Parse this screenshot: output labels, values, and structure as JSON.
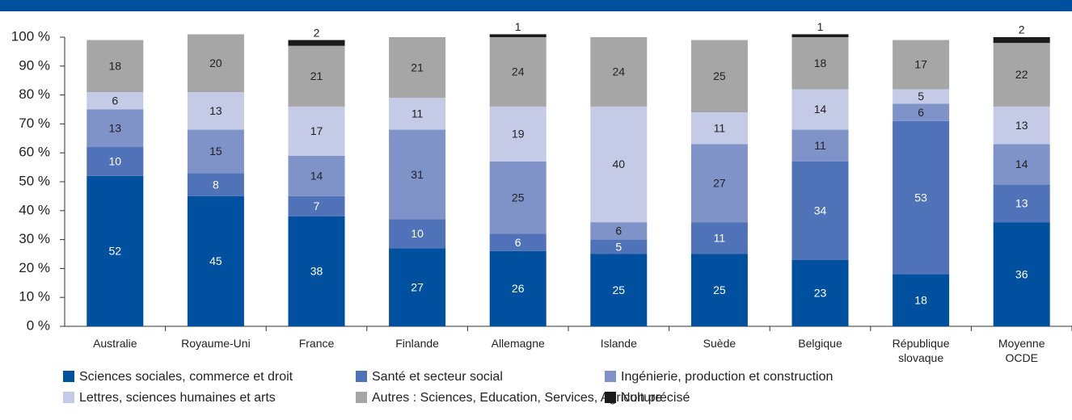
{
  "chart_data": {
    "type": "stacked_bar",
    "categories": [
      "Australie",
      "Royaume-Uni",
      "France",
      "Finlande",
      "Allemagne",
      "Islande",
      "Suède",
      "Belgique",
      "République slovaque",
      "Moyenne OCDE"
    ],
    "series": [
      {
        "name": "Sciences sociales, commerce et droit",
        "color": "#0050a0",
        "values": [
          52,
          45,
          38,
          27,
          26,
          25,
          25,
          23,
          18,
          36
        ]
      },
      {
        "name": "Santé et secteur social",
        "color": "#4f72b8",
        "values": [
          10,
          8,
          7,
          10,
          6,
          5,
          11,
          34,
          53,
          13
        ]
      },
      {
        "name": "Ingénierie, production et construction",
        "color": "#7f93c8",
        "values": [
          13,
          15,
          14,
          31,
          25,
          6,
          27,
          11,
          6,
          14
        ]
      },
      {
        "name": "Lettres, sciences humaines et arts",
        "color": "#c5cae6",
        "values": [
          6,
          13,
          17,
          11,
          19,
          40,
          11,
          14,
          5,
          13
        ]
      },
      {
        "name": "Autres : Sciences, Education, Services, Agriculture",
        "color": "#a6a6a6",
        "values": [
          18,
          20,
          21,
          21,
          24,
          24,
          25,
          18,
          17,
          22
        ]
      },
      {
        "name": "Non précisé",
        "color": "#1a1a1a",
        "values": [
          null,
          null,
          2,
          null,
          1,
          null,
          null,
          1,
          null,
          2
        ]
      }
    ],
    "ylim": [
      0,
      100
    ],
    "yticks": [
      {
        "value": 0,
        "label": "0 %"
      },
      {
        "value": 10,
        "label": "10 %"
      },
      {
        "value": 20,
        "label": "20 %"
      },
      {
        "value": 30,
        "label": "30 %"
      },
      {
        "value": 40,
        "label": "40 %"
      },
      {
        "value": 50,
        "label": "50 %"
      },
      {
        "value": 60,
        "label": "60 %"
      },
      {
        "value": 70,
        "label": "70 %"
      },
      {
        "value": 80,
        "label": "80 %"
      },
      {
        "value": 90,
        "label": "90 %"
      },
      {
        "value": 100,
        "label": "100 %"
      }
    ],
    "grid": false
  }
}
